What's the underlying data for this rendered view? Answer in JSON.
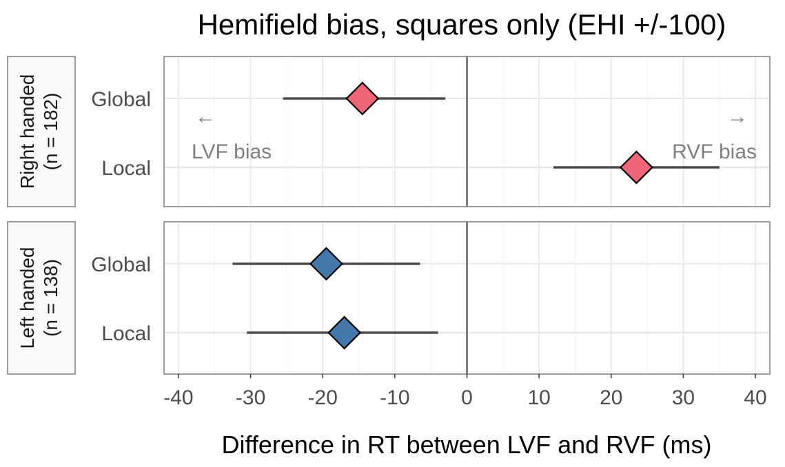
{
  "chart_data": {
    "type": "scatter",
    "title": "Hemifield bias, squares only (EHI +/-100)",
    "xlabel": "Difference in RT between LVF and RVF (ms)",
    "ylabel": "",
    "xlim": [
      -42,
      42
    ],
    "xticks": [
      -40,
      -30,
      -20,
      -10,
      0,
      10,
      20,
      30,
      40
    ],
    "tick_labels": [
      "-40",
      "-30",
      "-20",
      "-10",
      "0",
      "10",
      "20",
      "30",
      "40"
    ],
    "categories": [
      "Global",
      "Local"
    ],
    "grid": true,
    "reference_line_x": 0,
    "annotations": {
      "left_arrow": "←",
      "right_arrow": "→",
      "left_text": "LVF bias",
      "right_text": "RVF bias"
    },
    "panels": [
      {
        "strip_line1": "Right handed",
        "strip_line2": "(n = 182)",
        "color": "#EC6677",
        "points": [
          {
            "category": "Global",
            "estimate": -14.5,
            "lower": -25.5,
            "upper": -3.0
          },
          {
            "category": "Local",
            "estimate": 23.5,
            "lower": 12.0,
            "upper": 35.0
          }
        ]
      },
      {
        "strip_line1": "Left handed",
        "strip_line2": "(n = 138)",
        "color": "#4477AA",
        "points": [
          {
            "category": "Global",
            "estimate": -19.5,
            "lower": -32.5,
            "upper": -6.5
          },
          {
            "category": "Local",
            "estimate": -17.0,
            "lower": -30.5,
            "upper": -4.0
          }
        ]
      }
    ]
  }
}
